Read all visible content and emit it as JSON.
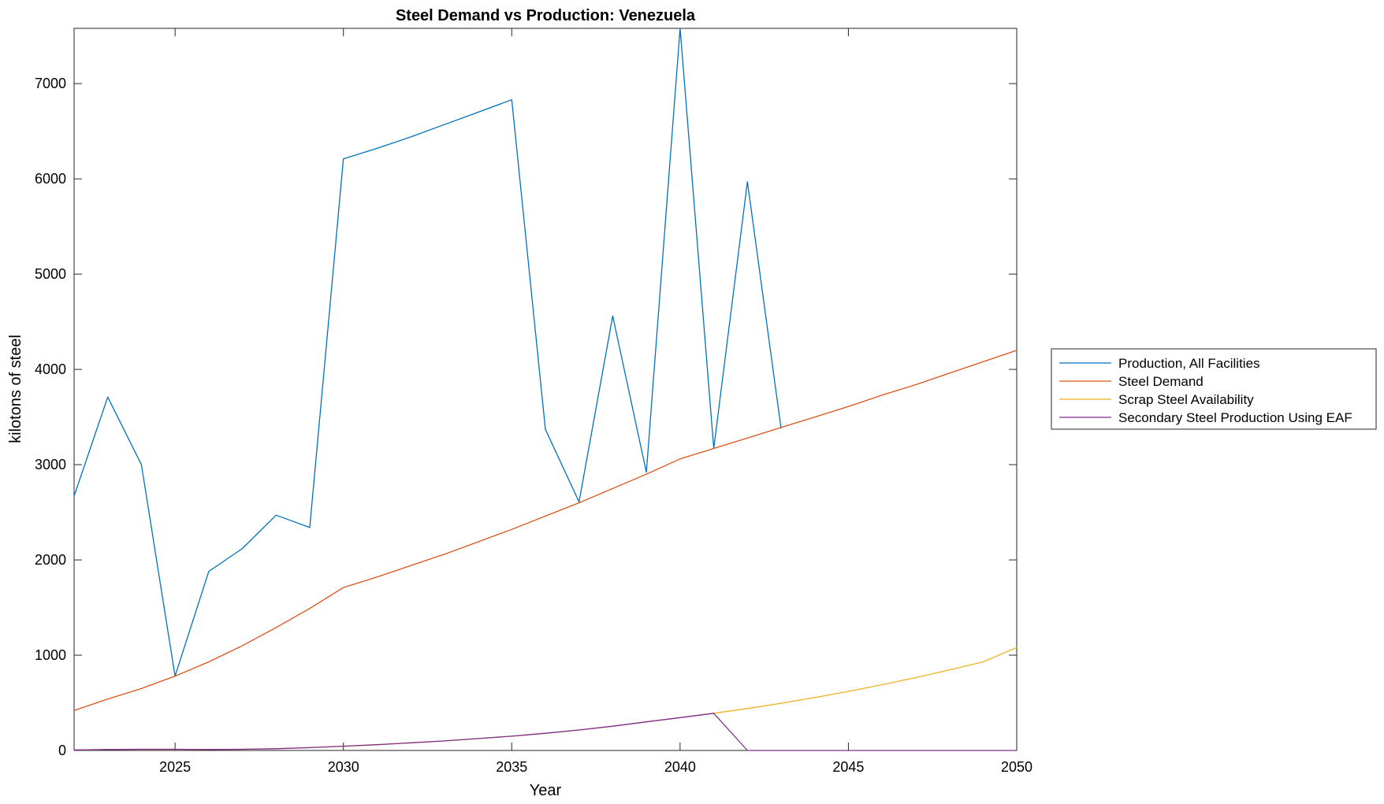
{
  "chart_data": {
    "type": "line",
    "title": "Steel Demand vs Production: Venezuela",
    "xlabel": "Year",
    "ylabel": "kilotons of steel",
    "xlim": [
      2022,
      2050
    ],
    "ylim": [
      0,
      7580
    ],
    "xticks": [
      "2025",
      "2030",
      "2035",
      "2040",
      "2045",
      "2050"
    ],
    "yticks": [
      "0",
      "1000",
      "2000",
      "3000",
      "4000",
      "5000",
      "6000",
      "7000"
    ],
    "grid": false,
    "legend_position": "outside-right",
    "series": [
      {
        "name": "Production, All Facilities",
        "color": "#0072BD",
        "x": [
          2022,
          2023,
          2024,
          2025,
          2026,
          2027,
          2028,
          2029,
          2030,
          2031,
          2032,
          2033,
          2034,
          2035,
          2036,
          2037,
          2038,
          2039,
          2040,
          2041,
          2042,
          2043
        ],
        "y": [
          2670,
          3710,
          3000,
          780,
          1880,
          2120,
          2470,
          2340,
          6210,
          6320,
          6440,
          6570,
          6700,
          6830,
          3370,
          2610,
          4560,
          2920,
          7580,
          3170,
          5970,
          3380
        ]
      },
      {
        "name": "Steel Demand",
        "color": "#D95319",
        "x": [
          2022,
          2023,
          2024,
          2025,
          2026,
          2027,
          2028,
          2029,
          2030,
          2031,
          2032,
          2033,
          2034,
          2035,
          2036,
          2037,
          2038,
          2039,
          2040,
          2041,
          2042,
          2043,
          2044,
          2045,
          2046,
          2047,
          2048,
          2049,
          2050
        ],
        "y": [
          420,
          540,
          650,
          780,
          930,
          1100,
          1290,
          1490,
          1710,
          1820,
          1940,
          2060,
          2190,
          2320,
          2460,
          2600,
          2750,
          2900,
          3060,
          3170,
          3280,
          3390,
          3500,
          3610,
          3730,
          3840,
          3960,
          4080,
          4200
        ]
      },
      {
        "name": "Scrap Steel Availability",
        "color": "#EDB120",
        "x": [
          2022,
          2023,
          2024,
          2025,
          2026,
          2027,
          2028,
          2029,
          2030,
          2031,
          2032,
          2033,
          2034,
          2035,
          2036,
          2037,
          2038,
          2039,
          2040,
          2041,
          2042,
          2043,
          2044,
          2045,
          2046,
          2047,
          2048,
          2049,
          2050
        ],
        "y": [
          5,
          10,
          12,
          12,
          10,
          12,
          18,
          30,
          45,
          60,
          80,
          100,
          125,
          150,
          180,
          215,
          255,
          300,
          345,
          390,
          440,
          495,
          555,
          620,
          690,
          765,
          845,
          930,
          1080
        ]
      },
      {
        "name": "Secondary Steel Production Using EAF",
        "color": "#7E2F8E",
        "x": [
          2022,
          2023,
          2024,
          2025,
          2026,
          2027,
          2028,
          2029,
          2030,
          2031,
          2032,
          2033,
          2034,
          2035,
          2036,
          2037,
          2038,
          2039,
          2040,
          2041,
          2042,
          2043,
          2044,
          2045,
          2046,
          2047,
          2048,
          2049,
          2050
        ],
        "y": [
          5,
          10,
          12,
          12,
          10,
          12,
          18,
          30,
          45,
          60,
          80,
          100,
          125,
          150,
          180,
          215,
          255,
          300,
          345,
          390,
          0,
          0,
          0,
          0,
          0,
          0,
          0,
          0,
          0
        ]
      }
    ]
  }
}
